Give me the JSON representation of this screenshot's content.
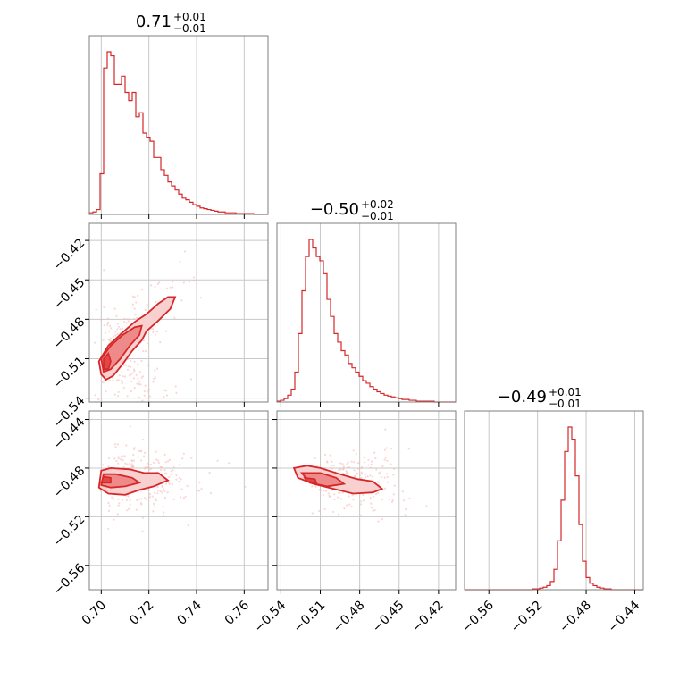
{
  "chart_data": {
    "type": "corner",
    "color": "#d62728",
    "parameters": [
      {
        "value": "0.71",
        "plus": "+0.01",
        "minus": "−0.01",
        "range": [
          0.695,
          0.77
        ],
        "ticks": [
          0.7,
          0.72,
          0.74,
          0.76
        ],
        "tick_labels": [
          "0.70",
          "0.72",
          "0.74",
          "0.76"
        ]
      },
      {
        "value": "−0.50",
        "plus": "+0.02",
        "minus": "−0.01",
        "range": [
          -0.543,
          -0.407
        ],
        "ticks": [
          -0.54,
          -0.51,
          -0.48,
          -0.45,
          -0.42
        ],
        "tick_labels": [
          "−0.54",
          "−0.51",
          "−0.48",
          "−0.45",
          "−0.42"
        ]
      },
      {
        "value": "−0.49",
        "plus": "+0.01",
        "minus": "−0.01",
        "range": [
          -0.58,
          -0.433
        ],
        "ticks": [
          -0.56,
          -0.52,
          -0.48,
          -0.44
        ],
        "tick_labels": [
          "−0.56",
          "−0.52",
          "−0.48",
          "−0.44"
        ]
      }
    ],
    "histograms": [
      {
        "bins": [
          0.695,
          0.77
        ],
        "counts": [
          2,
          3,
          6,
          50,
          180,
          200,
          195,
          160,
          160,
          170,
          150,
          140,
          150,
          120,
          125,
          100,
          95,
          90,
          70,
          70,
          55,
          48,
          40,
          35,
          30,
          25,
          20,
          18,
          15,
          12,
          10,
          8,
          7,
          6,
          5,
          4,
          3,
          3,
          2,
          2,
          2,
          1,
          1,
          1,
          1,
          1,
          0,
          0,
          0,
          0
        ]
      },
      {
        "bins": [
          -0.543,
          -0.407
        ],
        "counts": [
          1,
          2,
          4,
          8,
          15,
          35,
          80,
          130,
          170,
          190,
          180,
          170,
          165,
          150,
          120,
          100,
          80,
          70,
          60,
          55,
          45,
          40,
          35,
          30,
          25,
          22,
          18,
          15,
          12,
          10,
          8,
          7,
          6,
          5,
          4,
          3,
          3,
          2,
          2,
          1,
          1,
          1,
          1,
          1,
          0,
          0,
          0,
          0,
          0,
          0
        ]
      },
      {
        "bins": [
          -0.58,
          -0.433
        ],
        "counts": [
          0,
          0,
          0,
          0,
          0,
          0,
          0,
          0,
          0,
          0,
          0,
          0,
          0,
          0,
          0,
          0,
          0,
          0,
          0,
          1,
          1,
          2,
          3,
          5,
          10,
          25,
          60,
          110,
          170,
          200,
          185,
          140,
          80,
          35,
          15,
          8,
          5,
          3,
          2,
          1,
          1,
          0,
          0,
          0,
          0,
          0,
          0,
          0,
          0,
          0
        ]
      }
    ],
    "contours_2d": [
      {
        "pair": [
          0,
          1
        ],
        "levels": [
          [
            [
              0.7,
              -0.522
            ],
            [
              0.699,
              -0.512
            ],
            [
              0.703,
              -0.5
            ],
            [
              0.709,
              -0.49
            ],
            [
              0.714,
              -0.482
            ],
            [
              0.719,
              -0.476
            ],
            [
              0.724,
              -0.468
            ],
            [
              0.728,
              -0.463
            ],
            [
              0.731,
              -0.463
            ],
            [
              0.729,
              -0.472
            ],
            [
              0.724,
              -0.481
            ],
            [
              0.719,
              -0.489
            ],
            [
              0.717,
              -0.496
            ],
            [
              0.713,
              -0.504
            ],
            [
              0.709,
              -0.514
            ],
            [
              0.705,
              -0.523
            ],
            [
              0.702,
              -0.526
            ]
          ],
          [
            [
              0.701,
              -0.52
            ],
            [
              0.7,
              -0.51
            ],
            [
              0.704,
              -0.5
            ],
            [
              0.709,
              -0.492
            ],
            [
              0.714,
              -0.486
            ],
            [
              0.717,
              -0.485
            ],
            [
              0.716,
              -0.492
            ],
            [
              0.712,
              -0.5
            ],
            [
              0.708,
              -0.51
            ],
            [
              0.704,
              -0.518
            ]
          ],
          [
            [
              0.701,
              -0.518
            ],
            [
              0.701,
              -0.51
            ],
            [
              0.703,
              -0.506
            ],
            [
              0.704,
              -0.512
            ],
            [
              0.703,
              -0.518
            ]
          ]
        ]
      },
      {
        "pair": [
          0,
          2
        ],
        "levels": [
          [
            [
              0.699,
              -0.496
            ],
            [
              0.7,
              -0.482
            ],
            [
              0.704,
              -0.48
            ],
            [
              0.712,
              -0.481
            ],
            [
              0.718,
              -0.484
            ],
            [
              0.724,
              -0.484
            ],
            [
              0.728,
              -0.49
            ],
            [
              0.722,
              -0.495
            ],
            [
              0.716,
              -0.498
            ],
            [
              0.71,
              -0.502
            ],
            [
              0.703,
              -0.501
            ]
          ],
          [
            [
              0.7,
              -0.494
            ],
            [
              0.701,
              -0.485
            ],
            [
              0.706,
              -0.485
            ],
            [
              0.713,
              -0.488
            ],
            [
              0.716,
              -0.492
            ],
            [
              0.71,
              -0.495
            ],
            [
              0.704,
              -0.496
            ]
          ],
          [
            [
              0.7,
              -0.492
            ],
            [
              0.701,
              -0.487
            ],
            [
              0.704,
              -0.488
            ],
            [
              0.704,
              -0.492
            ]
          ]
        ]
      },
      {
        "pair": [
          1,
          2
        ],
        "levels": [
          [
            [
              -0.53,
              -0.48
            ],
            [
              -0.52,
              -0.478
            ],
            [
              -0.51,
              -0.48
            ],
            [
              -0.495,
              -0.485
            ],
            [
              -0.482,
              -0.489
            ],
            [
              -0.47,
              -0.491
            ],
            [
              -0.463,
              -0.497
            ],
            [
              -0.47,
              -0.5
            ],
            [
              -0.485,
              -0.501
            ],
            [
              -0.5,
              -0.497
            ],
            [
              -0.515,
              -0.493
            ],
            [
              -0.527,
              -0.488
            ]
          ],
          [
            [
              -0.524,
              -0.484
            ],
            [
              -0.51,
              -0.484
            ],
            [
              -0.498,
              -0.488
            ],
            [
              -0.492,
              -0.493
            ],
            [
              -0.505,
              -0.495
            ],
            [
              -0.518,
              -0.492
            ]
          ],
          [
            [
              -0.522,
              -0.488
            ],
            [
              -0.514,
              -0.489
            ],
            [
              -0.513,
              -0.492
            ],
            [
              -0.52,
              -0.491
            ]
          ]
        ]
      }
    ]
  }
}
